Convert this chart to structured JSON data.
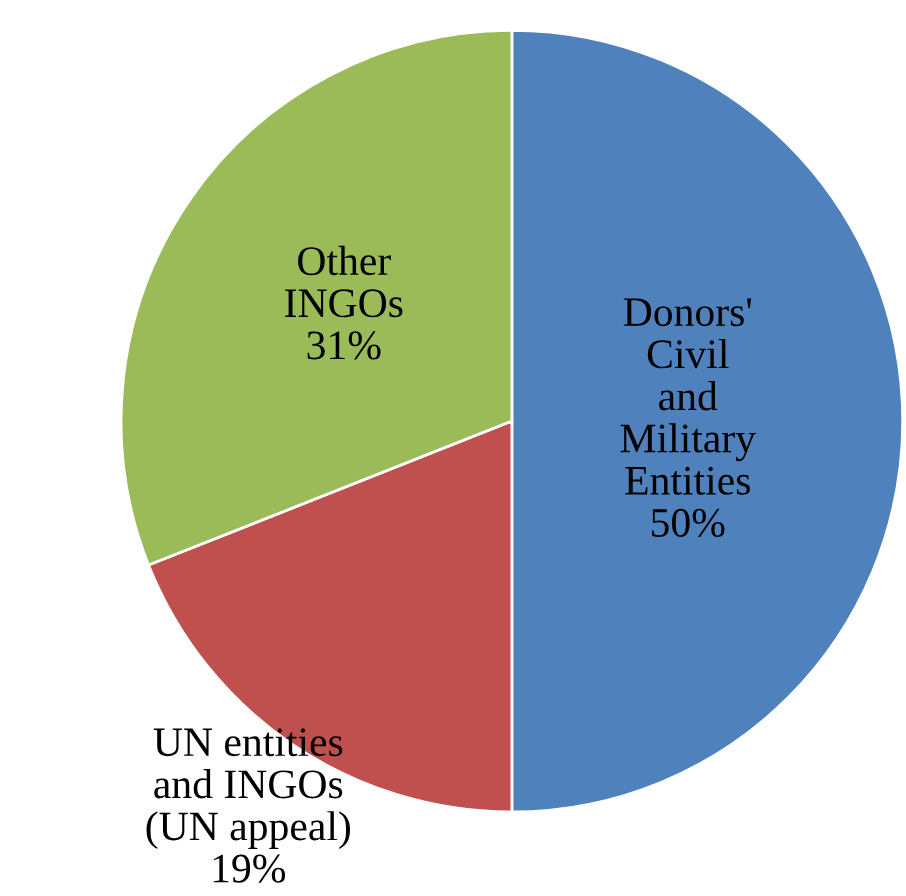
{
  "chart_data": {
    "type": "pie",
    "categories": [
      "Donors' Civil and Military Entities",
      "UN entities and INGOs (UN appeal)",
      "Other INGOs"
    ],
    "values": [
      50,
      19,
      31
    ],
    "colors": [
      "#4f81bd",
      "#c0504d",
      "#9bbb59"
    ],
    "value_labels": [
      "50%",
      "19%",
      "31%"
    ]
  }
}
